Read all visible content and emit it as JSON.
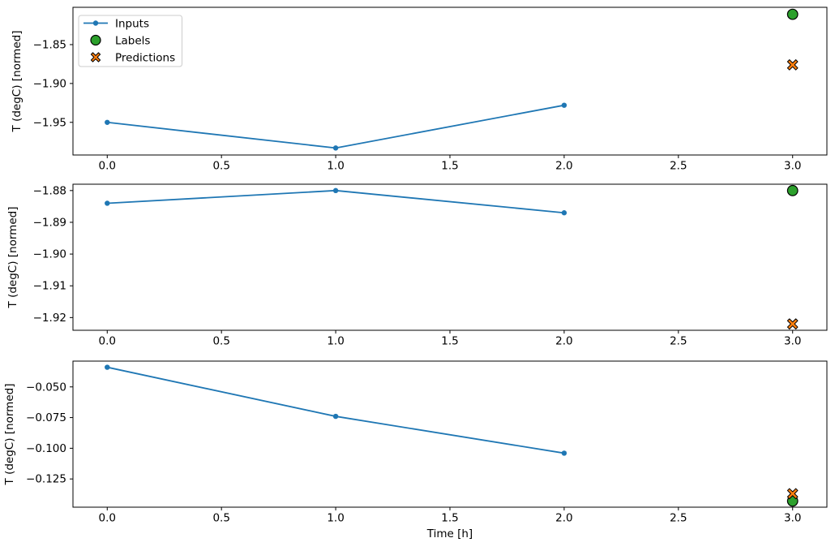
{
  "figure": {
    "xlabel": "Time [h]",
    "ylabel": "T (degC) [normed]",
    "background": "#ffffff",
    "colors": {
      "inputs": "#1f77b4",
      "labels": "#2ca02c",
      "predictions": "#ff7f0e",
      "marker_edge": "#000000",
      "legend_border": "#cccccc",
      "legend_fill": "rgba(255,255,255,0.8)",
      "axis": "#000000"
    },
    "legend": {
      "position": "upper-left",
      "entries": [
        {
          "label": "Inputs",
          "marker": "line-dot",
          "color": "#1f77b4"
        },
        {
          "label": "Labels",
          "marker": "circle",
          "color": "#2ca02c"
        },
        {
          "label": "Predictions",
          "marker": "x",
          "color": "#ff7f0e"
        }
      ]
    }
  },
  "chart_data": [
    {
      "type": "line",
      "title": "",
      "xlabel": "",
      "ylabel": "T (degC) [normed]",
      "grid": false,
      "legend": true,
      "xlim": [
        -0.15,
        3.15
      ],
      "ylim": [
        -1.992,
        -1.802
      ],
      "xtick_values": [
        0.0,
        0.5,
        1.0,
        1.5,
        2.0,
        2.5,
        3.0
      ],
      "xticks": [
        "0.0",
        "0.5",
        "1.0",
        "1.5",
        "2.0",
        "2.5",
        "3.0"
      ],
      "ytick_values": [
        -1.85,
        -1.9,
        -1.95
      ],
      "yticks": [
        "−1.85",
        "−1.90",
        "−1.95"
      ],
      "series": [
        {
          "name": "Inputs",
          "type": "line",
          "x": [
            0,
            1,
            2
          ],
          "y": [
            -1.95,
            -1.983,
            -1.928
          ]
        },
        {
          "name": "Labels",
          "type": "scatter-circle",
          "x": [
            3
          ],
          "y": [
            -1.811
          ]
        },
        {
          "name": "Predictions",
          "type": "scatter-x",
          "x": [
            3
          ],
          "y": [
            -1.876
          ]
        }
      ]
    },
    {
      "type": "line",
      "title": "",
      "xlabel": "",
      "ylabel": "T (degC) [normed]",
      "grid": false,
      "legend": false,
      "xlim": [
        -0.15,
        3.15
      ],
      "ylim": [
        -1.924,
        -1.878
      ],
      "xtick_values": [
        0.0,
        0.5,
        1.0,
        1.5,
        2.0,
        2.5,
        3.0
      ],
      "xticks": [
        "0.0",
        "0.5",
        "1.0",
        "1.5",
        "2.0",
        "2.5",
        "3.0"
      ],
      "ytick_values": [
        -1.88,
        -1.89,
        -1.9,
        -1.91,
        -1.92
      ],
      "yticks": [
        "−1.88",
        "−1.89",
        "−1.90",
        "−1.91",
        "−1.92"
      ],
      "series": [
        {
          "name": "Inputs",
          "type": "line",
          "x": [
            0,
            1,
            2
          ],
          "y": [
            -1.884,
            -1.88,
            -1.887
          ]
        },
        {
          "name": "Labels",
          "type": "scatter-circle",
          "x": [
            3
          ],
          "y": [
            -1.88
          ]
        },
        {
          "name": "Predictions",
          "type": "scatter-x",
          "x": [
            3
          ],
          "y": [
            -1.922
          ]
        }
      ]
    },
    {
      "type": "line",
      "title": "",
      "xlabel": "Time [h]",
      "ylabel": "T (degC) [normed]",
      "grid": false,
      "legend": false,
      "xlim": [
        -0.15,
        3.15
      ],
      "ylim": [
        -0.148,
        -0.029
      ],
      "xtick_values": [
        0.0,
        0.5,
        1.0,
        1.5,
        2.0,
        2.5,
        3.0
      ],
      "xticks": [
        "0.0",
        "0.5",
        "1.0",
        "1.5",
        "2.0",
        "2.5",
        "3.0"
      ],
      "ytick_values": [
        -0.05,
        -0.075,
        -0.1,
        -0.125
      ],
      "yticks": [
        "−0.050",
        "−0.075",
        "−0.100",
        "−0.125"
      ],
      "series": [
        {
          "name": "Inputs",
          "type": "line",
          "x": [
            0,
            1,
            2
          ],
          "y": [
            -0.034,
            -0.074,
            -0.104
          ]
        },
        {
          "name": "Labels",
          "type": "scatter-circle",
          "x": [
            3
          ],
          "y": [
            -0.143
          ]
        },
        {
          "name": "Predictions",
          "type": "scatter-x",
          "x": [
            3
          ],
          "y": [
            -0.137
          ]
        }
      ]
    }
  ]
}
